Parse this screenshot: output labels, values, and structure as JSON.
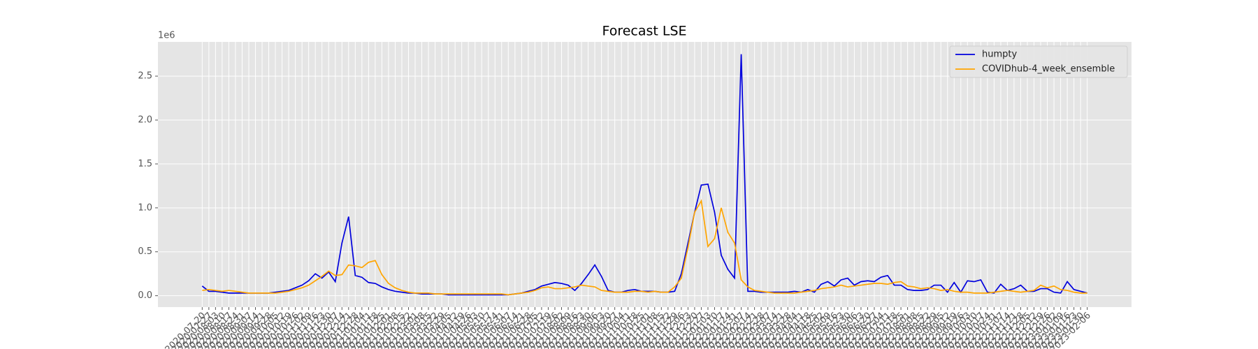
{
  "chart_data": {
    "type": "line",
    "title": "Forecast LSE",
    "y_offset_text": "1e6",
    "categories": [
      "2020-07-20",
      "2020-07-27",
      "2020-08-03",
      "2020-08-10",
      "2020-08-17",
      "2020-08-24",
      "2020-08-31",
      "2020-09-07",
      "2020-09-14",
      "2020-09-21",
      "2020-09-28",
      "2020-10-05",
      "2020-10-12",
      "2020-10-19",
      "2020-10-26",
      "2020-11-02",
      "2020-11-09",
      "2020-11-16",
      "2020-11-23",
      "2020-11-30",
      "2020-12-07",
      "2020-12-14",
      "2020-12-21",
      "2020-12-28",
      "2021-01-04",
      "2021-01-11",
      "2021-01-18",
      "2021-01-25",
      "2021-02-01",
      "2021-02-08",
      "2021-02-15",
      "2021-02-22",
      "2021-03-01",
      "2021-03-08",
      "2021-03-15",
      "2021-03-22",
      "2021-03-29",
      "2021-04-05",
      "2021-04-12",
      "2021-04-19",
      "2021-04-26",
      "2021-05-03",
      "2021-05-10",
      "2021-05-17",
      "2021-05-24",
      "2021-05-31",
      "2021-06-07",
      "2021-06-14",
      "2021-06-21",
      "2021-06-28",
      "2021-07-05",
      "2021-07-12",
      "2021-07-19",
      "2021-07-26",
      "2021-08-02",
      "2021-08-09",
      "2021-08-16",
      "2021-08-23",
      "2021-08-30",
      "2021-09-06",
      "2021-09-13",
      "2021-09-20",
      "2021-09-27",
      "2021-10-04",
      "2021-10-11",
      "2021-10-18",
      "2021-10-25",
      "2021-11-01",
      "2021-11-08",
      "2021-11-15",
      "2021-11-22",
      "2021-11-29",
      "2021-12-06",
      "2021-12-13",
      "2021-12-20",
      "2021-12-27",
      "2022-01-03",
      "2022-01-10",
      "2022-01-17",
      "2022-01-24",
      "2022-01-31",
      "2022-02-07",
      "2022-02-14",
      "2022-02-21",
      "2022-02-28",
      "2022-03-07",
      "2022-03-14",
      "2022-03-21",
      "2022-03-28",
      "2022-04-04",
      "2022-04-11",
      "2022-04-18",
      "2022-04-25",
      "2022-05-02",
      "2022-05-09",
      "2022-05-16",
      "2022-05-23",
      "2022-05-30",
      "2022-06-06",
      "2022-06-13",
      "2022-06-20",
      "2022-06-27",
      "2022-07-04",
      "2022-07-11",
      "2022-07-18",
      "2022-07-25",
      "2022-08-01",
      "2022-08-08",
      "2022-08-15",
      "2022-08-22",
      "2022-08-29",
      "2022-09-05",
      "2022-09-12",
      "2022-09-19",
      "2022-09-26",
      "2022-10-03",
      "2022-10-10",
      "2022-10-17",
      "2022-10-24",
      "2022-10-31",
      "2022-11-07",
      "2022-11-14",
      "2022-11-21",
      "2022-11-28",
      "2022-12-05",
      "2022-12-12",
      "2022-12-19",
      "2022-12-26",
      "2023-01-02",
      "2023-01-09",
      "2023-01-16",
      "2023-01-23",
      "2023-01-30",
      "2023-02-06"
    ],
    "series": [
      {
        "name": "humpty",
        "color": "#0000dd",
        "values": [
          0.11,
          0.05,
          0.05,
          0.04,
          0.03,
          0.03,
          0.03,
          0.03,
          0.03,
          0.03,
          0.03,
          0.04,
          0.05,
          0.06,
          0.09,
          0.12,
          0.17,
          0.25,
          0.2,
          0.27,
          0.16,
          0.6,
          0.9,
          0.23,
          0.21,
          0.15,
          0.14,
          0.1,
          0.07,
          0.05,
          0.04,
          0.03,
          0.03,
          0.02,
          0.02,
          0.02,
          0.02,
          0.01,
          0.01,
          0.01,
          0.01,
          0.01,
          0.01,
          0.01,
          0.01,
          0.01,
          0.01,
          0.02,
          0.03,
          0.05,
          0.07,
          0.11,
          0.13,
          0.15,
          0.14,
          0.12,
          0.06,
          0.14,
          0.24,
          0.35,
          0.22,
          0.06,
          0.04,
          0.04,
          0.06,
          0.07,
          0.05,
          0.05,
          0.05,
          0.04,
          0.04,
          0.05,
          0.25,
          0.6,
          0.95,
          1.26,
          1.27,
          0.95,
          0.46,
          0.3,
          0.2,
          2.75,
          0.05,
          0.05,
          0.04,
          0.04,
          0.04,
          0.04,
          0.04,
          0.05,
          0.04,
          0.07,
          0.04,
          0.13,
          0.16,
          0.11,
          0.18,
          0.2,
          0.12,
          0.16,
          0.17,
          0.16,
          0.21,
          0.23,
          0.12,
          0.12,
          0.07,
          0.06,
          0.06,
          0.07,
          0.12,
          0.12,
          0.04,
          0.15,
          0.04,
          0.17,
          0.16,
          0.18,
          0.04,
          0.03,
          0.13,
          0.06,
          0.08,
          0.12,
          0.05,
          0.05,
          0.08,
          0.08,
          0.04,
          0.03,
          0.16,
          0.07,
          0.05,
          0.03
        ]
      },
      {
        "name": "COVIDhub-4_week_ensemble",
        "color": "#ffa500",
        "values": [
          0.06,
          0.07,
          0.06,
          0.05,
          0.06,
          0.05,
          0.04,
          0.03,
          0.03,
          0.03,
          0.03,
          0.03,
          0.04,
          0.05,
          0.07,
          0.09,
          0.12,
          0.17,
          0.22,
          0.28,
          0.23,
          0.24,
          0.35,
          0.34,
          0.32,
          0.38,
          0.4,
          0.24,
          0.14,
          0.09,
          0.06,
          0.04,
          0.03,
          0.03,
          0.03,
          0.02,
          0.02,
          0.02,
          0.02,
          0.02,
          0.02,
          0.02,
          0.02,
          0.02,
          0.02,
          0.02,
          0.01,
          0.02,
          0.03,
          0.04,
          0.06,
          0.09,
          0.1,
          0.08,
          0.08,
          0.09,
          0.1,
          0.12,
          0.11,
          0.1,
          0.06,
          0.05,
          0.04,
          0.04,
          0.04,
          0.05,
          0.05,
          0.04,
          0.05,
          0.04,
          0.04,
          0.1,
          0.2,
          0.55,
          0.95,
          1.08,
          0.56,
          0.65,
          1.0,
          0.72,
          0.6,
          0.18,
          0.1,
          0.06,
          0.05,
          0.04,
          0.03,
          0.03,
          0.03,
          0.03,
          0.04,
          0.05,
          0.06,
          0.08,
          0.09,
          0.1,
          0.12,
          0.1,
          0.11,
          0.12,
          0.13,
          0.14,
          0.14,
          0.13,
          0.15,
          0.16,
          0.11,
          0.1,
          0.08,
          0.09,
          0.08,
          0.06,
          0.07,
          0.05,
          0.04,
          0.04,
          0.03,
          0.03,
          0.03,
          0.04,
          0.05,
          0.06,
          0.05,
          0.04,
          0.05,
          0.06,
          0.12,
          0.09,
          0.11,
          0.07,
          0.06,
          0.04,
          0.03,
          0.03
        ]
      }
    ],
    "ylim": [
      -0.13,
      2.89
    ],
    "yticks": [
      {
        "value": 0,
        "label": "0.0"
      },
      0.5,
      {
        "value": 1,
        "label": "1.0"
      },
      1.5,
      {
        "value": 2,
        "label": "2.0"
      },
      2.5
    ],
    "grid": true,
    "legend": "upper right"
  }
}
